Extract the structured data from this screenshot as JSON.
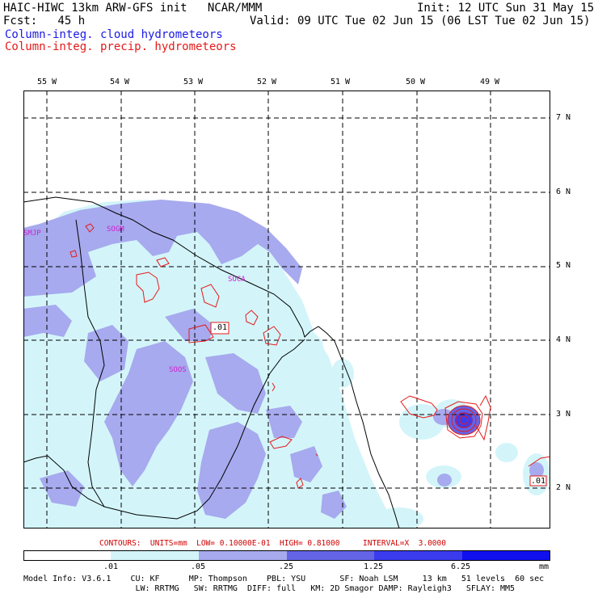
{
  "header": {
    "line1_left": "HAIC-HIWC 13km ARW-GFS init   NCAR/MMM",
    "line1_right": "Init: 12 UTC Sun 31 May 15",
    "line2_left": "Fcst:   45 h",
    "line2_right": "Valid: 09 UTC Tue 02 Jun 15 (06 LST Tue 02 Jun 15)",
    "legend_cloud": "Column-integ. cloud hydrometeors",
    "legend_precip": "Column-integ. precip. hydrometeors"
  },
  "map": {
    "lon_labels": [
      "55 W",
      "54 W",
      "53 W",
      "52 W",
      "51 W",
      "50 W",
      "49 W"
    ],
    "lat_labels": [
      "7 N",
      "6 N",
      "5 N",
      "4 N",
      "3 N",
      "2 N"
    ],
    "station_labels": [
      "SMJP",
      "SOGM",
      "SOCA",
      "SOOS"
    ],
    "contour_labels": [
      ".01",
      ".01"
    ]
  },
  "contour_info": "CONTOURS:  UNITS=mm  LOW= 0.10000E-01  HIGH= 0.81000     INTERVAL=X  3.0000",
  "colorbar": {
    "ticks": [
      ".01",
      ".05",
      ".25",
      "1.25",
      "6.25"
    ],
    "unit": "mm",
    "colors": [
      "#ffffff",
      "#d3f5fa",
      "#a7aaee",
      "#6464e6",
      "#3b3bee",
      "#1010ee"
    ]
  },
  "model_info": {
    "line1": "Model Info: V3.6.1    CU: KF      MP: Thompson    PBL: YSU       SF: Noah LSM     13 km   51 levels  60 sec",
    "line2": "                       LW: RRTMG   SW: RRTMG  DIFF: full   KM: 2D Smagor DAMP: Rayleigh3   SFLAY: MM5"
  }
}
